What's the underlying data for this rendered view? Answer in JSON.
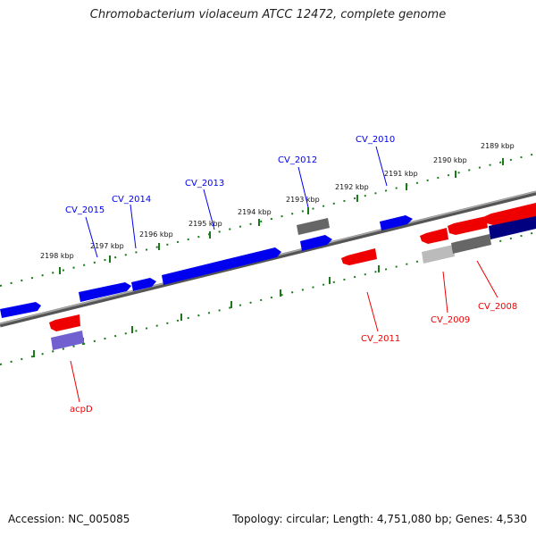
{
  "title": "Chromobacterium violaceum ATCC 12472, complete genome",
  "footer": {
    "accession": "Accession: NC_005085",
    "summary": "Topology: circular; Length: 4,751,080 bp; Genes: 4,530"
  },
  "scale_labels": [
    "2189 kbp",
    "2190 kbp",
    "2191 kbp",
    "2192 kbp",
    "2193 kbp",
    "2194 kbp",
    "2195 kbp",
    "2196 kbp",
    "2197 kbp",
    "2198 kbp"
  ],
  "genes_top": [
    "CV_2010",
    "CV_2012",
    "CV_2013",
    "CV_2014",
    "CV_2015"
  ],
  "genes_bottom": [
    "CV_2008",
    "CV_2009",
    "CV_2011",
    "acpD"
  ],
  "colors": {
    "forward_gene": "#0000ee",
    "reverse_gene": "#ee0000",
    "backbone": "#777777",
    "scale_ticks": "#1a7a1a",
    "cds_gray": "#666666",
    "cds_light_gray": "#bbbbbb",
    "cds_navy": "#000080",
    "cds_purple": "#7060d0"
  }
}
